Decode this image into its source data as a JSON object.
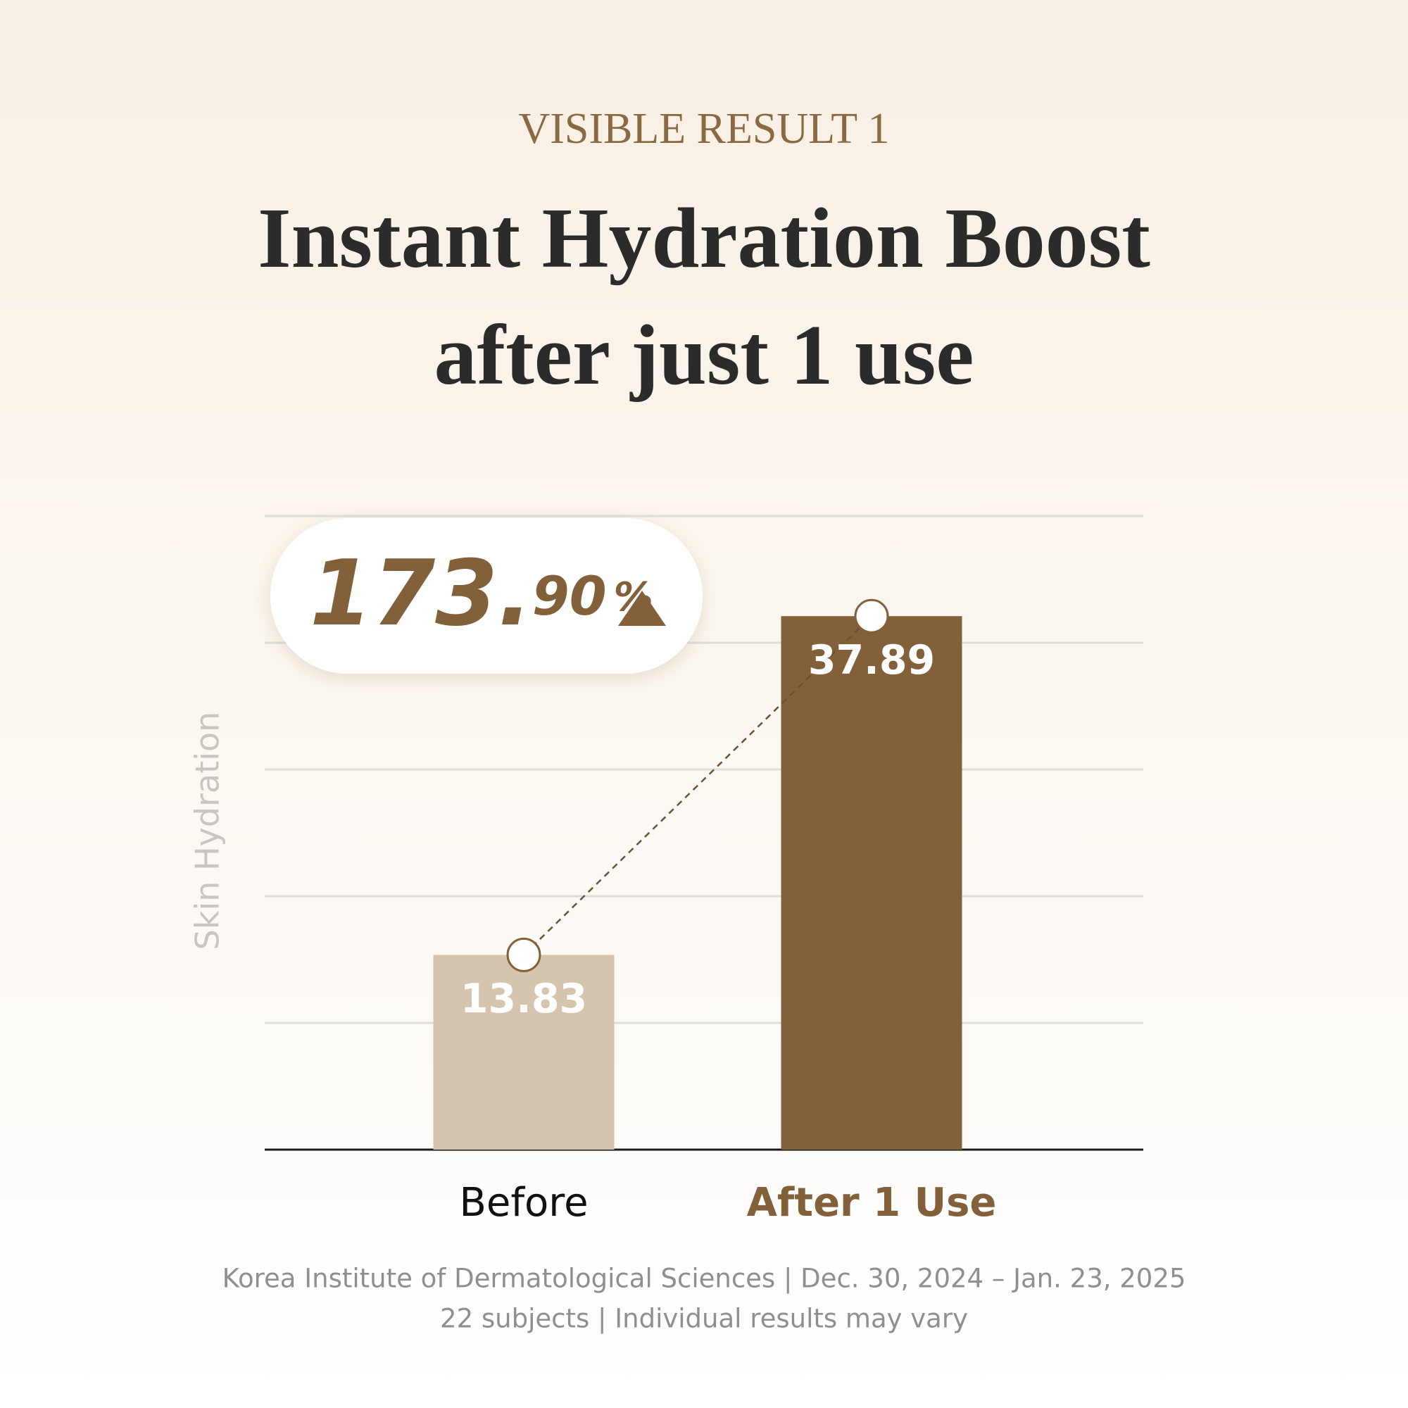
{
  "chart_data": {
    "type": "bar",
    "kicker": "VISIBLE RESULT 1",
    "title": [
      "Instant Hydration Boost",
      "after just 1 use"
    ],
    "ylabel": "Skin Hydration",
    "categories": [
      "Before",
      "After 1 Use"
    ],
    "values": [
      13.83,
      37.89
    ],
    "colors": [
      "#d6c5ae",
      "#82613a"
    ],
    "ylim": [
      0,
      45
    ],
    "yticks": [
      0,
      9,
      18,
      27,
      36,
      45
    ],
    "grid": true,
    "annotation": [
      "173.",
      "90",
      "%"
    ],
    "notes": [
      "Korea Institute of Dermatological Sciences | Dec. 30, 2024 – Jan. 23, 2025",
      "22 subjects | Individual results may vary"
    ]
  }
}
